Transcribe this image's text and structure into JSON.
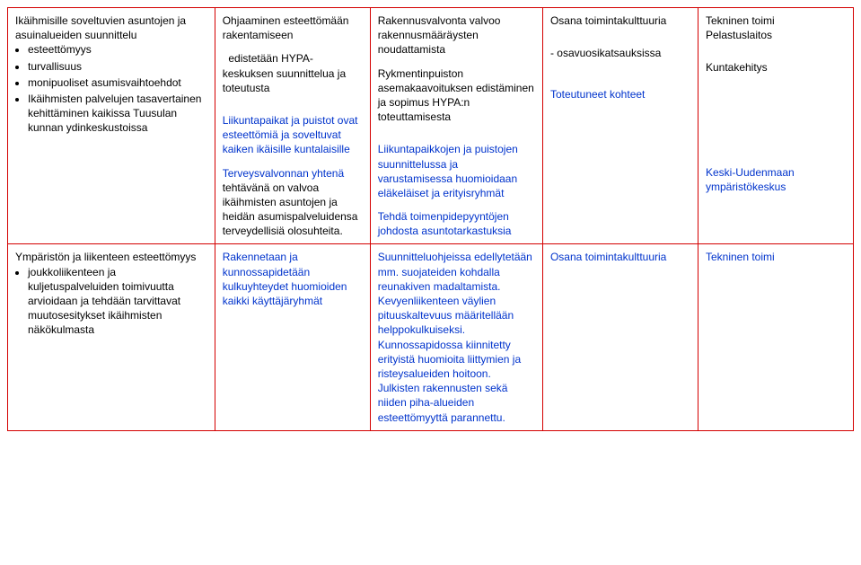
{
  "styles": {
    "border_color": "#d40000",
    "blue": "#0033cc",
    "black": "#000000",
    "background": "#ffffff",
    "font_family": "Arial",
    "font_size_pt": 9
  },
  "row1": {
    "c1_title": "Ikäihmisille soveltuvien asuntojen ja asuinalueiden suunnittelu",
    "c1_bullets": [
      "esteettömyys",
      "turvallisuus",
      "monipuoliset asumisvaihtoehdot",
      "Ikäihmisten palvelujen tasavertainen kehittäminen kaikissa Tuusulan kunnan ydinkeskustoissa"
    ],
    "c2_p1": "Ohjaaminen esteettömään rakentamiseen",
    "c2_p2": "  edistetään HYPA-keskuksen suunnittelua ja toteutusta",
    "c2_p3": "Liikuntapaikat ja puistot ovat esteettömiä ja soveltuvat kaiken ikäisille kuntalaisille",
    "c2_p4a": "Terveysvalvonnan yhtenä ",
    "c2_p4b": "tehtävänä on valvoa ikäihmisten asuntojen ja heidän asumispalveluidensa terveydellisiä olosuhteita.",
    "c3_p1": "Rakennusvalvonta valvoo rakennusmääräysten noudattamista",
    "c3_p2": "Rykmentinpuiston asemakaavoituksen edistäminen ja sopimus HYPA:n toteuttamisesta",
    "c3_p3": "Liikuntapaikkojen ja puistojen suunnittelussa ja varustamisessa huomioidaan eläkeläiset ja erityisryhmät",
    "c3_p4": "Tehdä toimenpidepyyntöjen johdosta asuntotarkastuksia",
    "c4_p1": "Osana toimintakulttuuria",
    "c4_p2": "- osavuosikatsauksissa",
    "c4_p3": "Toteutuneet kohteet",
    "c5_p1": "Tekninen toimi",
    "c5_p2": "Pelastuslaitos",
    "c5_p3": "Kuntakehitys",
    "c5_p4": "Keski-Uudenmaan ympäristökeskus"
  },
  "row2": {
    "c1_title": "Ympäristön ja liikenteen esteettömyys",
    "c1_bullets": [
      "joukkoliikenteen ja kuljetuspalveluiden toimivuutta arvioidaan ja tehdään tarvittavat muutosesitykset ikäihmisten näkökulmasta"
    ],
    "c2_p1": "Rakennetaan ja kunnossapidetään kulkuyhteydet huomioiden kaikki käyttäjäryhmät",
    "c3_p1": "Suunnitteluohjeissa edellytetään mm. suojateiden kohdalla reunakiven madaltamista. Kevyenliikenteen väylien pituuskaltevuus  määritellään helppokulkuiseksi. Kunnossapidossa  kiinnitetty erityistä huomioita liittymien ja risteysalueiden hoitoon. Julkisten rakennusten sekä niiden piha-alueiden esteettömyyttä parannettu.",
    "c4_p1": "Osana toimintakulttuuria",
    "c5_p1": "Tekninen toimi"
  }
}
